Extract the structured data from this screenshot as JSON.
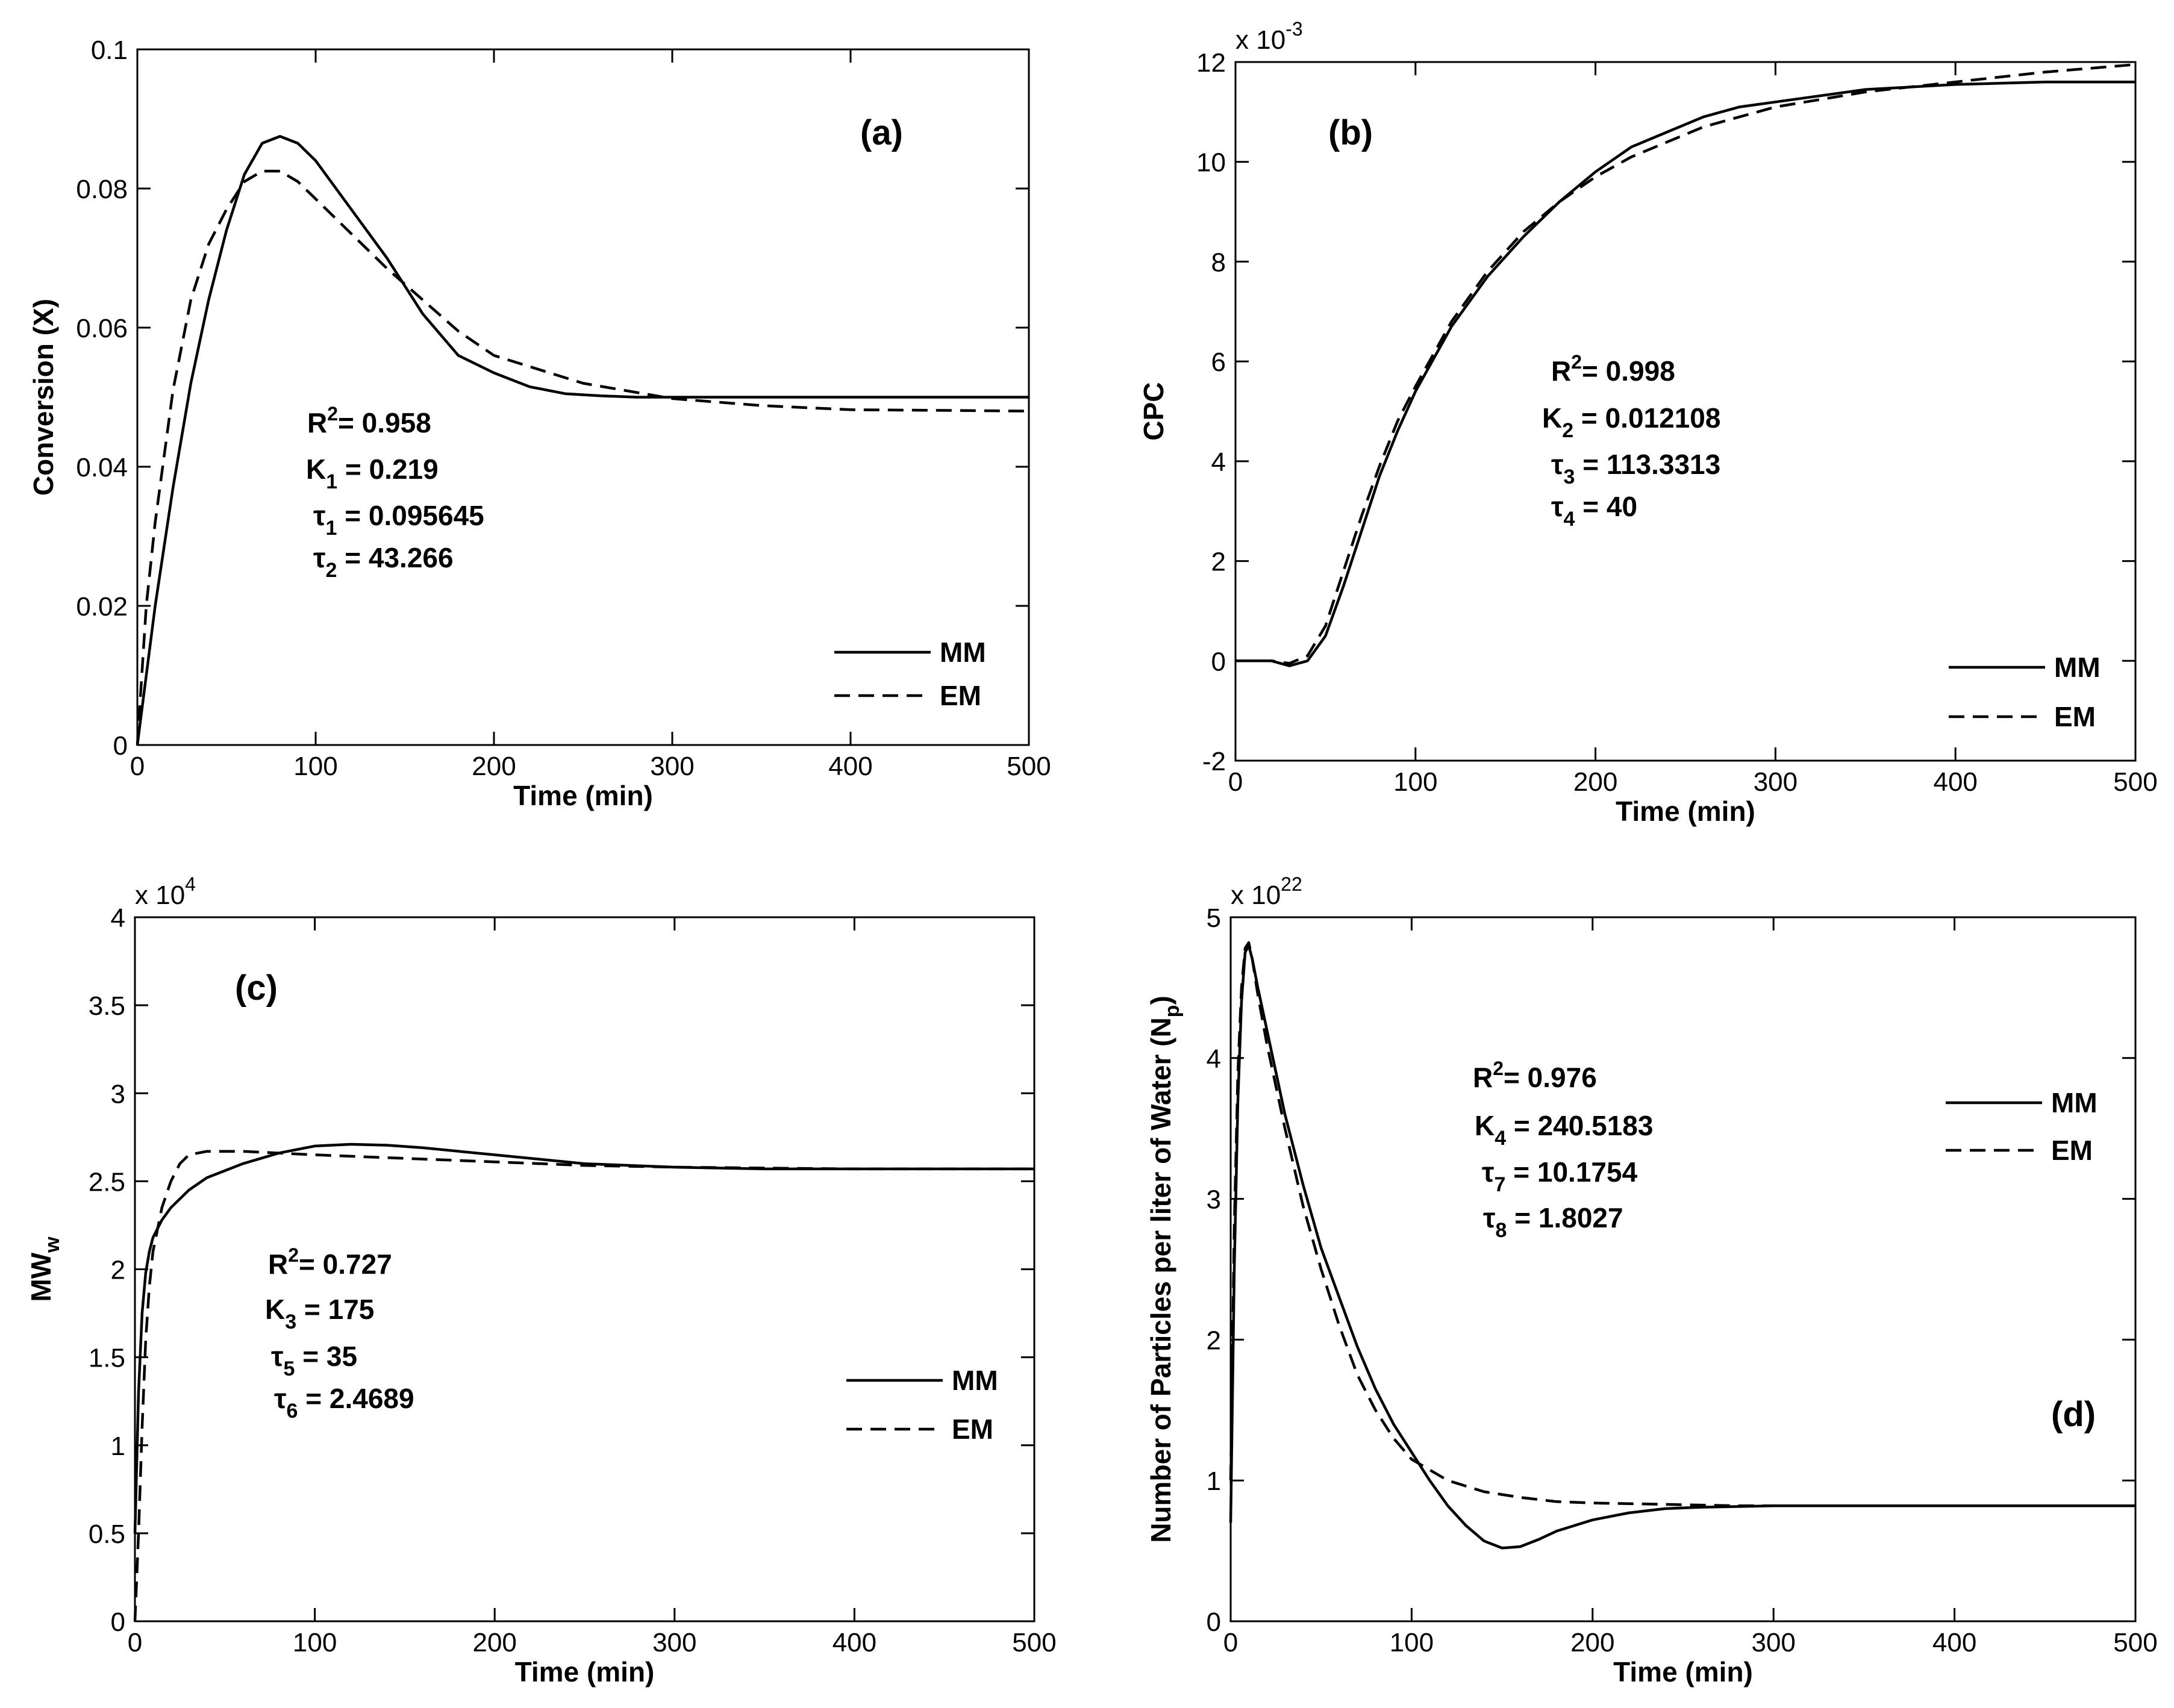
{
  "figure": {
    "background": "#ffffff",
    "line_color": "#000000"
  },
  "chart_data": [
    {
      "id": "a",
      "type": "line",
      "panel_label": "(a)",
      "title": "",
      "xlabel": "Time (min)",
      "ylabel": "Conversion (X)",
      "xlim": [
        0,
        500
      ],
      "ylim": [
        0,
        0.1
      ],
      "xticks": [
        0,
        100,
        200,
        300,
        400,
        500
      ],
      "xtick_labels": [
        "0",
        "100",
        "200",
        "300",
        "400",
        "500"
      ],
      "yticks": [
        0,
        0.02,
        0.04,
        0.06,
        0.08,
        0.1
      ],
      "ytick_labels": [
        "0",
        "0.02",
        "0.04",
        "0.06",
        "0.08",
        "0.1"
      ],
      "exponent_label": null,
      "annotation": [
        {
          "main": "R",
          "sup": "2",
          "rest": "= 0.958"
        },
        {
          "main": "K",
          "sub": "1",
          "rest": " = 0.219"
        },
        {
          "main": "τ",
          "sub": "1",
          "rest": " = 0.095645"
        },
        {
          "main": "τ",
          "sub": "2",
          "rest": " = 43.266"
        }
      ],
      "legend": {
        "position": "lower-right",
        "entries": [
          "MM",
          "EM"
        ]
      },
      "series": [
        {
          "name": "MM",
          "style": "solid",
          "x": [
            0,
            5,
            10,
            20,
            30,
            40,
            50,
            60,
            70,
            80,
            90,
            100,
            120,
            140,
            160,
            180,
            200,
            220,
            240,
            260,
            280,
            300,
            350,
            400,
            450,
            500
          ],
          "y": [
            0,
            0.01,
            0.02,
            0.037,
            0.052,
            0.064,
            0.074,
            0.082,
            0.0865,
            0.0875,
            0.0865,
            0.084,
            0.077,
            0.07,
            0.062,
            0.056,
            0.0535,
            0.0515,
            0.0505,
            0.0502,
            0.05,
            0.05,
            0.05,
            0.05,
            0.05,
            0.05
          ]
        },
        {
          "name": "EM",
          "style": "dashed",
          "x": [
            0,
            2,
            5,
            10,
            20,
            30,
            40,
            50,
            60,
            70,
            80,
            90,
            100,
            120,
            140,
            160,
            180,
            200,
            250,
            300,
            350,
            400,
            450,
            500
          ],
          "y": [
            0,
            0.008,
            0.02,
            0.032,
            0.051,
            0.064,
            0.072,
            0.077,
            0.081,
            0.0825,
            0.0825,
            0.081,
            0.0785,
            0.0735,
            0.0685,
            0.064,
            0.0595,
            0.056,
            0.052,
            0.0498,
            0.0488,
            0.0482,
            0.0481,
            0.048
          ]
        }
      ]
    },
    {
      "id": "b",
      "type": "line",
      "panel_label": "(b)",
      "title": "",
      "xlabel": "Time (min)",
      "ylabel": "CPC",
      "xlim": [
        0,
        500
      ],
      "ylim": [
        -2,
        12
      ],
      "xticks": [
        0,
        100,
        200,
        300,
        400,
        500
      ],
      "xtick_labels": [
        "0",
        "100",
        "200",
        "300",
        "400",
        "500"
      ],
      "yticks": [
        -2,
        0,
        2,
        4,
        6,
        8,
        10,
        12
      ],
      "ytick_labels": [
        "-2",
        "0",
        "2",
        "4",
        "6",
        "8",
        "10",
        "12"
      ],
      "exponent_label": {
        "base": "x 10",
        "power": "-3"
      },
      "annotation": [
        {
          "main": "R",
          "sup": "2",
          "rest": "= 0.998"
        },
        {
          "main": "K",
          "sub": "2",
          "rest": " = 0.012108"
        },
        {
          "main": "τ",
          "sub": "3",
          "rest": " = 113.3313"
        },
        {
          "main": "τ",
          "sub": "4",
          "rest": " = 40"
        }
      ],
      "legend": {
        "position": "lower-right",
        "entries": [
          "MM",
          "EM"
        ]
      },
      "series": [
        {
          "name": "MM",
          "style": "solid",
          "x": [
            0,
            20,
            30,
            40,
            50,
            60,
            70,
            80,
            90,
            100,
            120,
            140,
            160,
            180,
            200,
            220,
            240,
            260,
            280,
            300,
            350,
            400,
            450,
            500
          ],
          "y": [
            0,
            0,
            -0.1,
            0,
            0.5,
            1.5,
            2.6,
            3.7,
            4.6,
            5.4,
            6.7,
            7.7,
            8.5,
            9.2,
            9.8,
            10.3,
            10.6,
            10.9,
            11.1,
            11.2,
            11.45,
            11.55,
            11.6,
            11.6
          ]
        },
        {
          "name": "EM",
          "style": "dashed",
          "x": [
            0,
            20,
            30,
            40,
            50,
            60,
            70,
            80,
            90,
            100,
            120,
            140,
            160,
            180,
            200,
            220,
            240,
            260,
            280,
            300,
            350,
            400,
            450,
            500
          ],
          "y": [
            0,
            0,
            -0.05,
            0.1,
            0.7,
            1.8,
            2.9,
            3.9,
            4.8,
            5.5,
            6.8,
            7.8,
            8.6,
            9.2,
            9.7,
            10.1,
            10.4,
            10.7,
            10.9,
            11.1,
            11.4,
            11.6,
            11.8,
            11.95
          ]
        }
      ]
    },
    {
      "id": "c",
      "type": "line",
      "panel_label": "(c)",
      "title": "",
      "xlabel": "Time (min)",
      "ylabel": {
        "main": "MW",
        "sub": "w"
      },
      "xlim": [
        0,
        500
      ],
      "ylim": [
        0,
        4
      ],
      "xticks": [
        0,
        100,
        200,
        300,
        400,
        500
      ],
      "xtick_labels": [
        "0",
        "100",
        "200",
        "300",
        "400",
        "500"
      ],
      "yticks": [
        0,
        0.5,
        1,
        1.5,
        2,
        2.5,
        3,
        3.5,
        4
      ],
      "ytick_labels": [
        "0",
        "0.5",
        "1",
        "1.5",
        "2",
        "2.5",
        "3",
        "3.5",
        "4"
      ],
      "exponent_label": {
        "base": "x 10",
        "power": "4"
      },
      "annotation": [
        {
          "main": "R",
          "sup": "2",
          "rest": "= 0.727"
        },
        {
          "main": "K",
          "sub": "3",
          "rest": " = 175"
        },
        {
          "main": "τ",
          "sub": "5",
          "rest": " = 35"
        },
        {
          "main": "τ",
          "sub": "6",
          "rest": " = 2.4689"
        }
      ],
      "legend": {
        "position": "lower-right",
        "entries": [
          "MM",
          "EM"
        ]
      },
      "series": [
        {
          "name": "MM",
          "style": "solid",
          "x": [
            0,
            2,
            4,
            6,
            8,
            10,
            15,
            20,
            30,
            40,
            60,
            80,
            100,
            120,
            140,
            160,
            200,
            250,
            300,
            350,
            400,
            500
          ],
          "y": [
            0.5,
            1.3,
            1.75,
            1.98,
            2.1,
            2.18,
            2.28,
            2.35,
            2.45,
            2.52,
            2.6,
            2.66,
            2.7,
            2.71,
            2.705,
            2.69,
            2.65,
            2.6,
            2.58,
            2.57,
            2.57,
            2.57
          ]
        },
        {
          "name": "EM",
          "style": "dashed",
          "x": [
            0,
            2,
            4,
            6,
            8,
            10,
            15,
            20,
            25,
            30,
            40,
            60,
            80,
            100,
            150,
            200,
            250,
            300,
            400,
            500
          ],
          "y": [
            0,
            0.5,
            1.1,
            1.6,
            1.9,
            2.1,
            2.35,
            2.5,
            2.6,
            2.65,
            2.67,
            2.67,
            2.66,
            2.65,
            2.63,
            2.61,
            2.59,
            2.58,
            2.57,
            2.57
          ]
        }
      ]
    },
    {
      "id": "d",
      "type": "line",
      "panel_label": "(d)",
      "title": "",
      "xlabel": "Time (min)",
      "ylabel": {
        "main": "Number of Particles per liter of Water (N",
        "sub": "p",
        "tail": ")"
      },
      "xlim": [
        0,
        500
      ],
      "ylim": [
        0,
        5
      ],
      "xticks": [
        0,
        100,
        200,
        300,
        400,
        500
      ],
      "xtick_labels": [
        "0",
        "100",
        "200",
        "300",
        "400",
        "500"
      ],
      "yticks": [
        0,
        1,
        2,
        3,
        4,
        5
      ],
      "ytick_labels": [
        "0",
        "1",
        "2",
        "3",
        "4",
        "5"
      ],
      "exponent_label": {
        "base": "x 10",
        "power": "22"
      },
      "annotation": [
        {
          "main": "R",
          "sup": "2",
          "rest": "= 0.976"
        },
        {
          "main": "K",
          "sub": "4",
          "rest": " = 240.5183"
        },
        {
          "main": "τ",
          "sub": "7",
          "rest": " = 10.1754"
        },
        {
          "main": "τ",
          "sub": "8",
          "rest": " = 1.8027"
        }
      ],
      "legend": {
        "position": "upper-right",
        "entries": [
          "MM",
          "EM"
        ]
      },
      "series": [
        {
          "name": "MM",
          "style": "solid",
          "x": [
            0,
            2,
            4,
            6,
            8,
            10,
            12,
            15,
            20,
            30,
            40,
            50,
            60,
            70,
            80,
            90,
            100,
            110,
            120,
            130,
            140,
            150,
            160,
            170,
            180,
            200,
            220,
            240,
            260,
            300,
            400,
            500
          ],
          "y": [
            0.7,
            2.5,
            3.7,
            4.4,
            4.75,
            4.8,
            4.7,
            4.5,
            4.2,
            3.6,
            3.1,
            2.65,
            2.3,
            1.95,
            1.65,
            1.4,
            1.2,
            1.0,
            0.82,
            0.68,
            0.57,
            0.52,
            0.53,
            0.58,
            0.64,
            0.72,
            0.77,
            0.8,
            0.81,
            0.82,
            0.82,
            0.82
          ]
        },
        {
          "name": "EM",
          "style": "dashed",
          "x": [
            0,
            2,
            4,
            6,
            8,
            10,
            12,
            15,
            20,
            30,
            40,
            50,
            60,
            70,
            80,
            90,
            100,
            120,
            140,
            160,
            180,
            200,
            240,
            280,
            320,
            400,
            500
          ],
          "y": [
            1.0,
            2.8,
            3.9,
            4.5,
            4.78,
            4.82,
            4.7,
            4.45,
            4.1,
            3.5,
            2.95,
            2.5,
            2.1,
            1.75,
            1.5,
            1.3,
            1.15,
            1.0,
            0.92,
            0.88,
            0.85,
            0.84,
            0.83,
            0.82,
            0.82,
            0.82,
            0.82
          ]
        }
      ]
    }
  ]
}
